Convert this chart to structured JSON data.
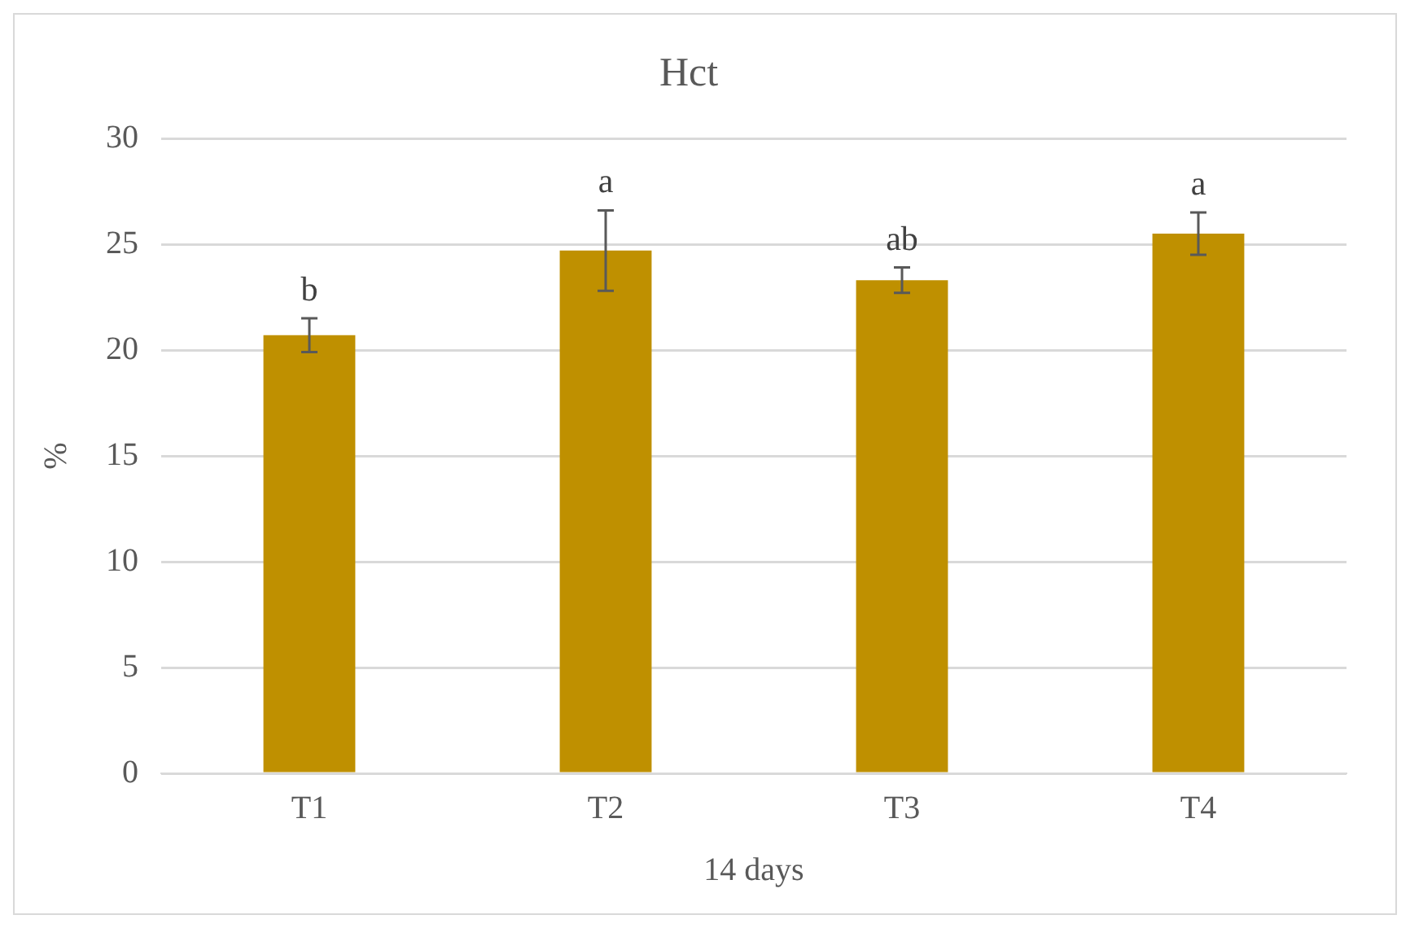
{
  "chart_data": {
    "type": "bar",
    "title": "Hct",
    "xlabel": "14 days",
    "ylabel": "%",
    "categories": [
      "T1",
      "T2",
      "T3",
      "T4"
    ],
    "values": [
      20.7,
      24.7,
      23.3,
      25.5
    ],
    "errors": [
      0.8,
      1.9,
      0.6,
      1.0
    ],
    "color": "#bf9000",
    "ylim": [
      0,
      30
    ],
    "yticks": [
      0,
      5,
      10,
      15,
      20,
      25,
      30
    ],
    "grid": "y",
    "legend": false,
    "annotations": [
      {
        "text": "b",
        "x": "T1",
        "y": 20.7
      },
      {
        "text": "a",
        "x": "T2",
        "y": 24.7
      },
      {
        "text": "ab",
        "x": "T3",
        "y": 23.3
      },
      {
        "text": "a",
        "x": "T4",
        "y": 25.5
      }
    ]
  }
}
